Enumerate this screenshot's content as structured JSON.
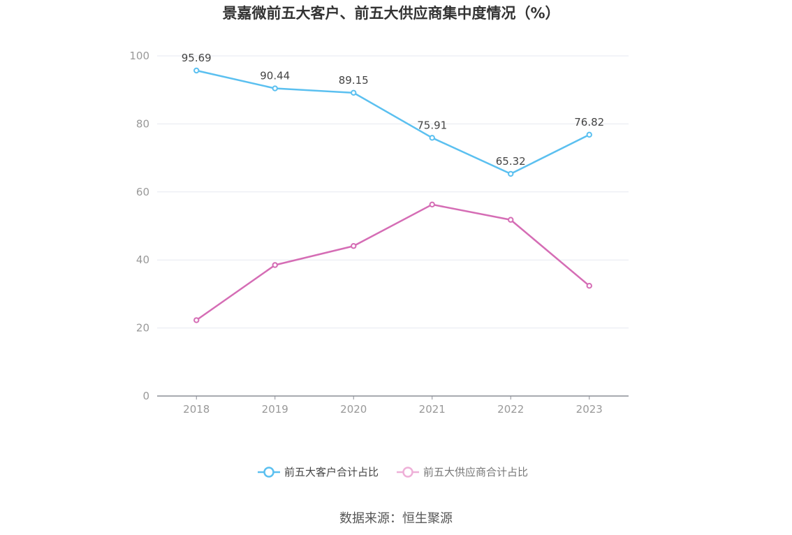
{
  "chart_data": {
    "type": "line",
    "title": "景嘉微前五大客户、前五大供应商集中度情况（%）",
    "categories": [
      "2018",
      "2019",
      "2020",
      "2021",
      "2022",
      "2023"
    ],
    "ylim": [
      0,
      100
    ],
    "yticks": [
      "0",
      "20",
      "40",
      "60",
      "80",
      "100"
    ],
    "grid": true,
    "legend_position": "bottom",
    "series": [
      {
        "name": "前五大客户合计占比",
        "values": [
          95.69,
          90.44,
          89.15,
          75.91,
          65.32,
          76.82
        ],
        "labels": [
          "95.69",
          "90.44",
          "89.15",
          "75.91",
          "65.32",
          "76.82"
        ],
        "color": "#5bc0f0"
      },
      {
        "name": "前五大供应商合计占比",
        "values": [
          22.3,
          38.5,
          44.1,
          56.3,
          51.8,
          32.4
        ],
        "color": "#d56db5",
        "legend_color": "#eeb0d8"
      }
    ]
  },
  "source": "数据来源：恒生聚源"
}
